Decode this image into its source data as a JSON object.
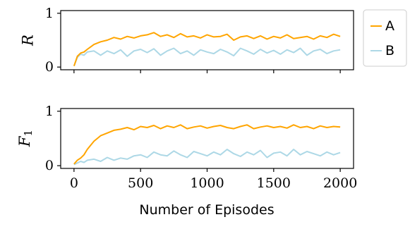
{
  "chart_data": [
    {
      "type": "line",
      "panel": "top",
      "ylabel": "R",
      "xlim": [
        0,
        2000
      ],
      "ylim": [
        0,
        1
      ],
      "yticks": [
        0,
        1
      ],
      "xticks": [
        0,
        500,
        1000,
        1500,
        2000
      ],
      "grid": false,
      "series": [
        {
          "name": "A",
          "color": "#ffa500",
          "x": [
            0,
            25,
            50,
            75,
            100,
            150,
            200,
            250,
            300,
            350,
            400,
            450,
            500,
            550,
            600,
            650,
            700,
            750,
            800,
            850,
            900,
            950,
            1000,
            1050,
            1100,
            1150,
            1200,
            1250,
            1300,
            1350,
            1400,
            1450,
            1500,
            1550,
            1600,
            1650,
            1700,
            1750,
            1800,
            1850,
            1900,
            1950,
            2000
          ],
          "y": [
            0.02,
            0.2,
            0.26,
            0.28,
            0.33,
            0.42,
            0.47,
            0.5,
            0.55,
            0.52,
            0.57,
            0.54,
            0.58,
            0.6,
            0.64,
            0.57,
            0.6,
            0.55,
            0.62,
            0.56,
            0.58,
            0.54,
            0.6,
            0.56,
            0.57,
            0.61,
            0.5,
            0.56,
            0.58,
            0.53,
            0.58,
            0.52,
            0.57,
            0.54,
            0.6,
            0.53,
            0.55,
            0.57,
            0.52,
            0.58,
            0.55,
            0.61,
            0.57
          ]
        },
        {
          "name": "B",
          "color": "#add8e6",
          "x": [
            0,
            25,
            50,
            75,
            100,
            150,
            200,
            250,
            300,
            350,
            400,
            450,
            500,
            550,
            600,
            650,
            700,
            750,
            800,
            850,
            900,
            950,
            1000,
            1050,
            1100,
            1150,
            1200,
            1250,
            1300,
            1350,
            1400,
            1450,
            1500,
            1550,
            1600,
            1650,
            1700,
            1750,
            1800,
            1850,
            1900,
            1950,
            2000
          ],
          "y": [
            0.02,
            0.18,
            0.24,
            0.22,
            0.28,
            0.3,
            0.22,
            0.3,
            0.25,
            0.32,
            0.2,
            0.3,
            0.33,
            0.27,
            0.34,
            0.22,
            0.3,
            0.35,
            0.25,
            0.3,
            0.22,
            0.32,
            0.28,
            0.25,
            0.33,
            0.28,
            0.21,
            0.35,
            0.3,
            0.24,
            0.33,
            0.26,
            0.31,
            0.24,
            0.32,
            0.27,
            0.35,
            0.22,
            0.3,
            0.33,
            0.25,
            0.3,
            0.32
          ]
        }
      ]
    },
    {
      "type": "line",
      "panel": "bottom",
      "ylabel": "F1",
      "xlabel": "Number of Episodes",
      "xlim": [
        0,
        2000
      ],
      "ylim": [
        0,
        1
      ],
      "yticks": [
        0,
        1
      ],
      "xticks": [
        0,
        500,
        1000,
        1500,
        2000
      ],
      "grid": false,
      "series": [
        {
          "name": "A",
          "color": "#ffa500",
          "x": [
            0,
            25,
            50,
            75,
            100,
            150,
            200,
            250,
            300,
            350,
            400,
            450,
            500,
            550,
            600,
            650,
            700,
            750,
            800,
            850,
            900,
            950,
            1000,
            1050,
            1100,
            1150,
            1200,
            1250,
            1300,
            1350,
            1400,
            1450,
            1500,
            1550,
            1600,
            1650,
            1700,
            1750,
            1800,
            1850,
            1900,
            1950,
            2000
          ],
          "y": [
            0.03,
            0.1,
            0.14,
            0.2,
            0.3,
            0.45,
            0.55,
            0.6,
            0.65,
            0.67,
            0.7,
            0.66,
            0.72,
            0.7,
            0.74,
            0.68,
            0.73,
            0.7,
            0.75,
            0.68,
            0.71,
            0.73,
            0.69,
            0.72,
            0.74,
            0.7,
            0.68,
            0.72,
            0.75,
            0.68,
            0.71,
            0.73,
            0.7,
            0.72,
            0.69,
            0.75,
            0.7,
            0.72,
            0.68,
            0.73,
            0.7,
            0.72,
            0.71
          ]
        },
        {
          "name": "B",
          "color": "#add8e6",
          "x": [
            0,
            25,
            50,
            75,
            100,
            150,
            200,
            250,
            300,
            350,
            400,
            450,
            500,
            550,
            600,
            650,
            700,
            750,
            800,
            850,
            900,
            950,
            1000,
            1050,
            1100,
            1150,
            1200,
            1250,
            1300,
            1350,
            1400,
            1450,
            1500,
            1550,
            1600,
            1650,
            1700,
            1750,
            1800,
            1850,
            1900,
            1950,
            2000
          ],
          "y": [
            0.02,
            0.05,
            0.08,
            0.06,
            0.1,
            0.12,
            0.08,
            0.15,
            0.1,
            0.14,
            0.12,
            0.18,
            0.2,
            0.15,
            0.25,
            0.2,
            0.18,
            0.27,
            0.2,
            0.15,
            0.26,
            0.22,
            0.18,
            0.25,
            0.2,
            0.3,
            0.22,
            0.17,
            0.25,
            0.2,
            0.28,
            0.15,
            0.23,
            0.25,
            0.18,
            0.3,
            0.2,
            0.26,
            0.22,
            0.18,
            0.25,
            0.2,
            0.24
          ]
        }
      ]
    }
  ],
  "legend": {
    "placement": "outside-right",
    "items": [
      {
        "label": "A",
        "color": "#ffa500"
      },
      {
        "label": "B",
        "color": "#add8e6"
      }
    ]
  }
}
